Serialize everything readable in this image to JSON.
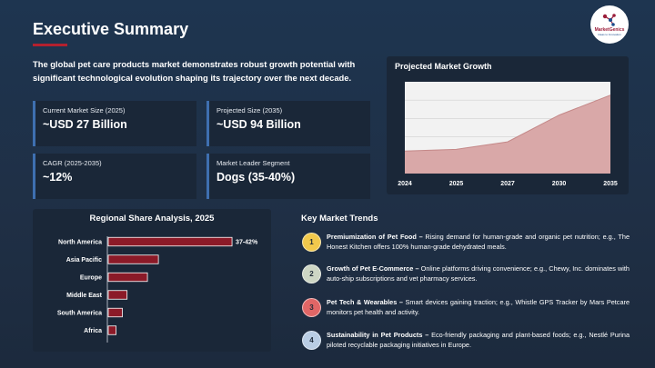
{
  "header": {
    "title": "Executive Summary",
    "logo": {
      "name": "MarketGenics",
      "tagline": "Ideas to Innovation"
    }
  },
  "intro": "The global pet care products market demonstrates robust growth potential with significant technological evolution shaping its trajectory over the next decade.",
  "stats": [
    {
      "label": "Current Market Size (2025)",
      "value": "~USD 27 Billion"
    },
    {
      "label": "Projected Size (2035)",
      "value": "~USD 94 Billion"
    },
    {
      "label": "CAGR (2025-2035)",
      "value": "~12%"
    },
    {
      "label": "Market Leader Segment",
      "value": "Dogs (35-40%)"
    }
  ],
  "growth_panel": {
    "title": "Projected Market Growth"
  },
  "region_panel": {
    "title": "Regional Share Analysis, 2025"
  },
  "trends": {
    "title": "Key Market Trends",
    "items": [
      {
        "num": "1",
        "color": "#f2c94c",
        "head": "Premiumization of Pet Food –",
        "body": " Rising demand for human-grade and organic pet nutrition; e.g., The Honest Kitchen offers 100% human-grade dehydrated meals."
      },
      {
        "num": "2",
        "color": "#cdd6c4",
        "head": "Growth of Pet E-Commerce –",
        "body": " Online platforms driving convenience; e.g., Chewy, Inc. dominates with auto-ship subscriptions and vet pharmacy services."
      },
      {
        "num": "3",
        "color": "#e06666",
        "head": "Pet Tech & Wearables –",
        "body": " Smart devices gaining traction; e.g., Whistle GPS Tracker by Mars Petcare monitors  pet health and activity."
      },
      {
        "num": "4",
        "color": "#b9cde4",
        "head": "Sustainability in Pet Products –",
        "body": " Eco-friendly packaging and plant-based foods; e.g., Nestlé Purina piloted recyclable packaging initiatives in Europe."
      }
    ]
  },
  "chart_data": [
    {
      "type": "area",
      "title": "Projected Market Growth",
      "x": [
        "2024",
        "2025",
        "2027",
        "2030",
        "2035"
      ],
      "values": [
        27,
        29,
        38,
        70,
        94
      ],
      "ylim": [
        0,
        110
      ],
      "grid": true,
      "color": "#d9a8a8"
    },
    {
      "type": "bar",
      "orientation": "horizontal",
      "title": "Regional Share Analysis, 2025",
      "categories": [
        "North America",
        "Asia Pacific",
        "Europe",
        "Middle East",
        "South America",
        "Africa"
      ],
      "values": [
        39.5,
        16,
        12.5,
        6,
        4.5,
        2.5
      ],
      "data_labels": [
        "37-42%",
        "",
        "",
        "",
        "",
        ""
      ],
      "xlim": [
        0,
        45
      ],
      "color": "#8b1a28"
    }
  ]
}
